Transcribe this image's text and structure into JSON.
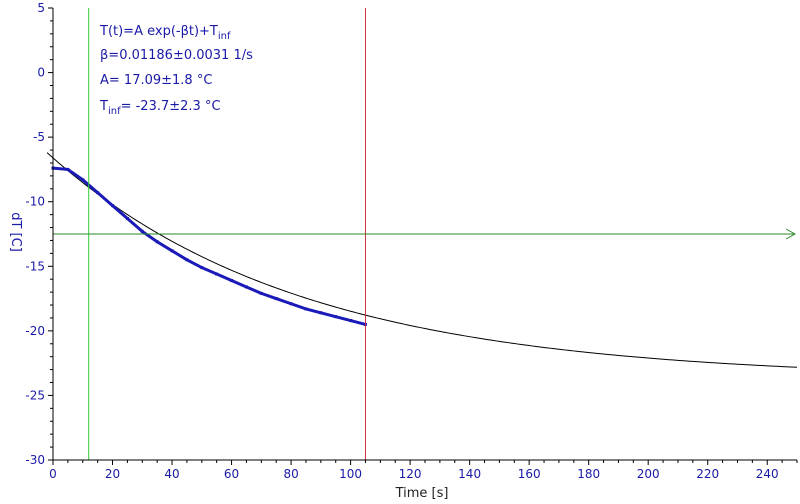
{
  "chart_data": {
    "type": "line",
    "xlabel": "Time [s]",
    "ylabel": "dT [C]",
    "xlim": [
      0,
      250
    ],
    "ylim": [
      -30,
      5
    ],
    "x_ticks": [
      0,
      20,
      40,
      60,
      80,
      100,
      120,
      140,
      160,
      180,
      200,
      220,
      240
    ],
    "y_ticks": [
      5,
      0,
      -5,
      -10,
      -15,
      -20,
      -25,
      -30
    ],
    "fit": {
      "A": 17.09,
      "beta": 0.01186,
      "T_inf": -23.7
    },
    "annotations": {
      "line1_main": "T(t)=A exp(-βt)+T",
      "line1_sub": "inf",
      "line2": "β=0.01186±0.0031 1/s",
      "line3": "A= 17.09±1.8 °C",
      "line4_main": "T",
      "line4_sub": "inf",
      "line4_rest": "= -23.7±2.3 °C"
    },
    "markers": {
      "green_vertical_x": 12,
      "red_vertical_x": 105,
      "green_horizontal_y": -12.5
    },
    "series": [
      {
        "x": [
          0,
          5,
          10,
          15,
          20,
          25,
          30,
          35,
          40,
          45,
          50,
          55,
          60,
          65,
          70,
          75,
          80,
          85,
          90,
          95,
          100,
          105
        ],
        "y": [
          -7.4,
          -7.5,
          -8.3,
          -9.3,
          -10.3,
          -11.3,
          -12.3,
          -13.1,
          -13.8,
          -14.5,
          -15.1,
          -15.6,
          -16.1,
          -16.6,
          -17.1,
          -17.5,
          -17.9,
          -18.3,
          -18.6,
          -18.9,
          -19.2,
          -19.5
        ]
      }
    ]
  }
}
